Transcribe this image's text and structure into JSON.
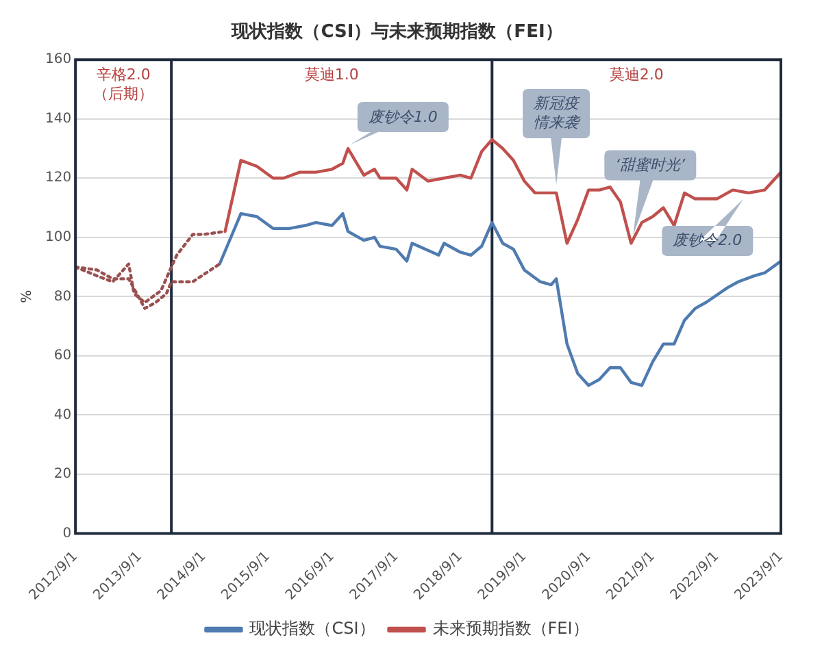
{
  "chart_data": {
    "type": "line",
    "title": "现状指数（CSI）与未来预期指数（FEI）",
    "ylabel": "%",
    "xlim": [
      "2012-09-01",
      "2023-09-01"
    ],
    "xticks": [
      {
        "value": "2012-09-01",
        "label": "2012/9/1"
      },
      {
        "value": "2013-09-01",
        "label": "2013/9/1"
      },
      {
        "value": "2014-09-01",
        "label": "2014/9/1"
      },
      {
        "value": "2015-09-01",
        "label": "2015/9/1"
      },
      {
        "value": "2016-09-01",
        "label": "2016/9/1"
      },
      {
        "value": "2017-09-01",
        "label": "2017/9/1"
      },
      {
        "value": "2018-09-01",
        "label": "2018/9/1"
      },
      {
        "value": "2019-09-01",
        "label": "2019/9/1"
      },
      {
        "value": "2020-09-01",
        "label": "2020/9/1"
      },
      {
        "value": "2021-09-01",
        "label": "2021/9/1"
      },
      {
        "value": "2022-09-01",
        "label": "2022/9/1"
      },
      {
        "value": "2023-09-01",
        "label": "2023/9/1"
      }
    ],
    "ylim": [
      0,
      160
    ],
    "yticks": [
      0,
      20,
      40,
      60,
      80,
      100,
      120,
      140,
      160
    ],
    "grid": "y",
    "legend": "bottom",
    "marker": "none",
    "series": [
      {
        "color": "#9a5050",
        "line_style": "dotted",
        "x": [
          "2012-09",
          "2013-01",
          "2013-04",
          "2013-07",
          "2013-10",
          "2013-12",
          "2014-02",
          "2014-03",
          "2014-07",
          "2014-12"
        ],
        "values": [
          90,
          89,
          86,
          86,
          76,
          78,
          81,
          85,
          85,
          91
        ]
      },
      {
        "name": "现状指数（CSI）",
        "color": "#4f7bb0",
        "line_style": "solid",
        "x": [
          "2014-12",
          "2015-04",
          "2015-07",
          "2015-10",
          "2016-01",
          "2016-04",
          "2016-06",
          "2016-09",
          "2016-11",
          "2016-12",
          "2017-03",
          "2017-05",
          "2017-06",
          "2017-09",
          "2017-11",
          "2017-12",
          "2018-05",
          "2018-06",
          "2018-09",
          "2018-11",
          "2019-01",
          "2019-03",
          "2019-05",
          "2019-07",
          "2019-09",
          "2019-12",
          "2020-02",
          "2020-03",
          "2020-05",
          "2020-07",
          "2020-09",
          "2020-11",
          "2021-01",
          "2021-03",
          "2021-05",
          "2021-07",
          "2021-09",
          "2021-11",
          "2022-01",
          "2022-03",
          "2022-05",
          "2022-07",
          "2022-11",
          "2023-01",
          "2023-04",
          "2023-06",
          "2023-09"
        ],
        "values": [
          91,
          108,
          107,
          103,
          103,
          104,
          105,
          104,
          108,
          102,
          99,
          100,
          97,
          96,
          92,
          98,
          94,
          98,
          95,
          94,
          97,
          105,
          98,
          96,
          89,
          85,
          84,
          86,
          64,
          54,
          50,
          52,
          56,
          56,
          51,
          50,
          58,
          64,
          64,
          72,
          76,
          78,
          83,
          85,
          87,
          88,
          92
        ]
      },
      {
        "color": "#9a5050",
        "line_style": "dotted",
        "x": [
          "2012-09",
          "2013-01",
          "2013-04",
          "2013-07",
          "2013-08",
          "2013-10",
          "2014-01",
          "2014-03",
          "2014-04",
          "2014-07",
          "2014-09",
          "2015-01"
        ],
        "values": [
          90,
          87,
          85,
          91,
          81,
          78,
          82,
          90,
          94,
          101,
          101,
          102
        ]
      },
      {
        "name": "未来预期指数（FEI）",
        "color": "#c0504d",
        "line_style": "solid",
        "x": [
          "2015-01",
          "2015-04",
          "2015-07",
          "2015-10",
          "2015-12",
          "2016-03",
          "2016-06",
          "2016-09",
          "2016-11",
          "2016-12",
          "2017-03",
          "2017-05",
          "2017-06",
          "2017-09",
          "2017-11",
          "2017-12",
          "2018-03",
          "2018-06",
          "2018-09",
          "2018-11",
          "2019-01",
          "2019-03",
          "2019-05",
          "2019-07",
          "2019-09",
          "2019-11",
          "2020-02",
          "2020-03",
          "2020-05",
          "2020-07",
          "2020-09",
          "2020-11",
          "2021-01",
          "2021-03",
          "2021-05",
          "2021-07",
          "2021-09",
          "2021-11",
          "2022-01",
          "2022-03",
          "2022-05",
          "2022-09",
          "2022-12",
          "2023-03",
          "2023-06",
          "2023-09"
        ],
        "values": [
          102,
          126,
          124,
          120,
          120,
          122,
          122,
          123,
          125,
          130,
          121,
          123,
          120,
          120,
          116,
          123,
          119,
          120,
          121,
          120,
          129,
          133,
          130,
          126,
          119,
          115,
          115,
          115,
          98,
          106,
          116,
          116,
          117,
          112,
          98,
          105,
          107,
          110,
          104,
          115,
          113,
          113,
          116,
          115,
          116,
          122
        ]
      }
    ],
    "ref_lines": [
      {
        "axis": "x",
        "value": "2014-03",
        "color": "#1f2a3c"
      },
      {
        "axis": "x",
        "value": "2019-03",
        "color": "#1f2a3c"
      }
    ],
    "annotations": [
      "辛格2.0（后期）",
      "莫迪1.0",
      "莫迪2.0",
      {
        "text": "废钞令1.0",
        "x": "2016-11",
        "y": 130
      },
      {
        "text": "新冠疫情来袭",
        "x": "2020-03",
        "y": 115
      },
      {
        "text": "‘甜蜜时光’",
        "x": "2021-05",
        "y": 98
      },
      {
        "text": "废钞令2.0",
        "x": "2023-03",
        "y": 115
      }
    ]
  }
}
